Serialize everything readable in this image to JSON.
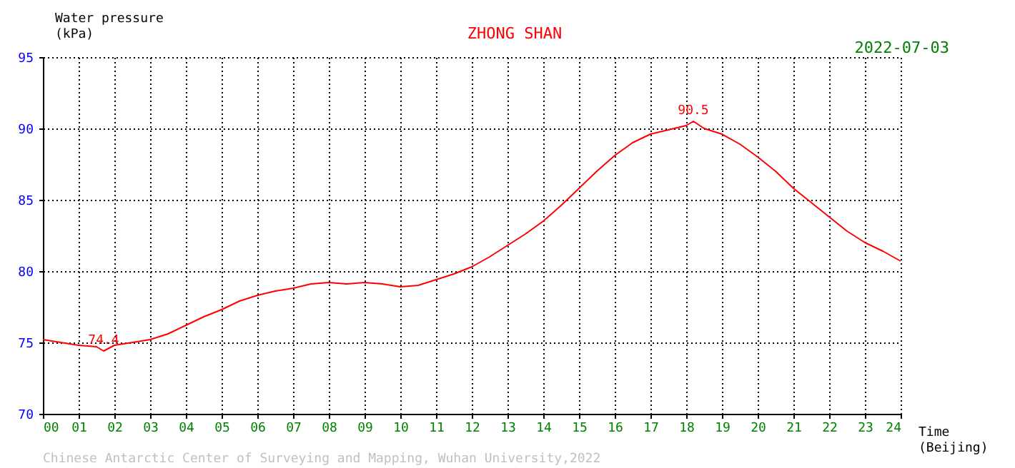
{
  "chart_data": {
    "type": "line",
    "title": "ZHONG SHAN",
    "subtitle": "2022-07-03",
    "xlabel": "Time (Beijing)",
    "ylabel": "Water pressure (kPa)",
    "x": [
      0,
      0.5,
      1,
      1.5,
      1.7,
      2,
      2.5,
      3,
      3.5,
      4,
      4.5,
      5,
      5.5,
      6,
      6.5,
      7,
      7.5,
      8,
      8.5,
      9,
      9.5,
      10,
      10.5,
      11,
      11.5,
      12,
      12.5,
      13,
      13.5,
      14,
      14.5,
      15,
      15.5,
      16,
      16.5,
      17,
      17.5,
      18,
      18.2,
      18.5,
      19,
      19.5,
      20,
      20.5,
      21,
      21.5,
      22,
      22.5,
      23,
      23.5,
      24
    ],
    "series": [
      {
        "color": "#ff0000",
        "values": [
          75.2,
          75.0,
          74.8,
          74.7,
          74.4,
          74.8,
          75.0,
          75.2,
          75.6,
          76.2,
          76.8,
          77.3,
          77.9,
          78.3,
          78.6,
          78.8,
          79.1,
          79.2,
          79.1,
          79.2,
          79.1,
          78.9,
          79.0,
          79.4,
          79.8,
          80.3,
          81.0,
          81.8,
          82.6,
          83.5,
          84.6,
          85.8,
          87.0,
          88.1,
          89.0,
          89.6,
          89.9,
          90.2,
          90.5,
          90.0,
          89.6,
          88.9,
          88.0,
          87.0,
          85.8,
          84.8,
          83.8,
          82.8,
          82.0,
          81.4,
          80.7
        ]
      }
    ],
    "xlim": [
      0,
      24
    ],
    "xticks": [
      {
        "value": 0,
        "label": "00"
      },
      {
        "value": 1,
        "label": "01"
      },
      {
        "value": 2,
        "label": "02"
      },
      {
        "value": 3,
        "label": "03"
      },
      {
        "value": 4,
        "label": "04"
      },
      {
        "value": 5,
        "label": "05"
      },
      {
        "value": 6,
        "label": "06"
      },
      {
        "value": 7,
        "label": "07"
      },
      {
        "value": 8,
        "label": "08"
      },
      {
        "value": 9,
        "label": "09"
      },
      {
        "value": 10,
        "label": "10"
      },
      {
        "value": 11,
        "label": "11"
      },
      {
        "value": 12,
        "label": "12"
      },
      {
        "value": 13,
        "label": "13"
      },
      {
        "value": 14,
        "label": "14"
      },
      {
        "value": 15,
        "label": "15"
      },
      {
        "value": 16,
        "label": "16"
      },
      {
        "value": 17,
        "label": "17"
      },
      {
        "value": 18,
        "label": "18"
      },
      {
        "value": 19,
        "label": "19"
      },
      {
        "value": 20,
        "label": "20"
      },
      {
        "value": 21,
        "label": "21"
      },
      {
        "value": 22,
        "label": "22"
      },
      {
        "value": 23,
        "label": "23"
      },
      {
        "value": 24,
        "label": "24"
      }
    ],
    "ylim": [
      70,
      95
    ],
    "yticks": [
      70,
      75,
      80,
      85,
      90,
      95
    ],
    "grid": true,
    "line_style": "solid",
    "annotations": [
      {
        "text": "74.4",
        "x": 1.7,
        "y": 74.4
      },
      {
        "text": "90.5",
        "x": 18.2,
        "y": 90.5
      },
      "Chinese Antarctic Center of Surveying and Mapping, Wuhan University,2022"
    ]
  }
}
